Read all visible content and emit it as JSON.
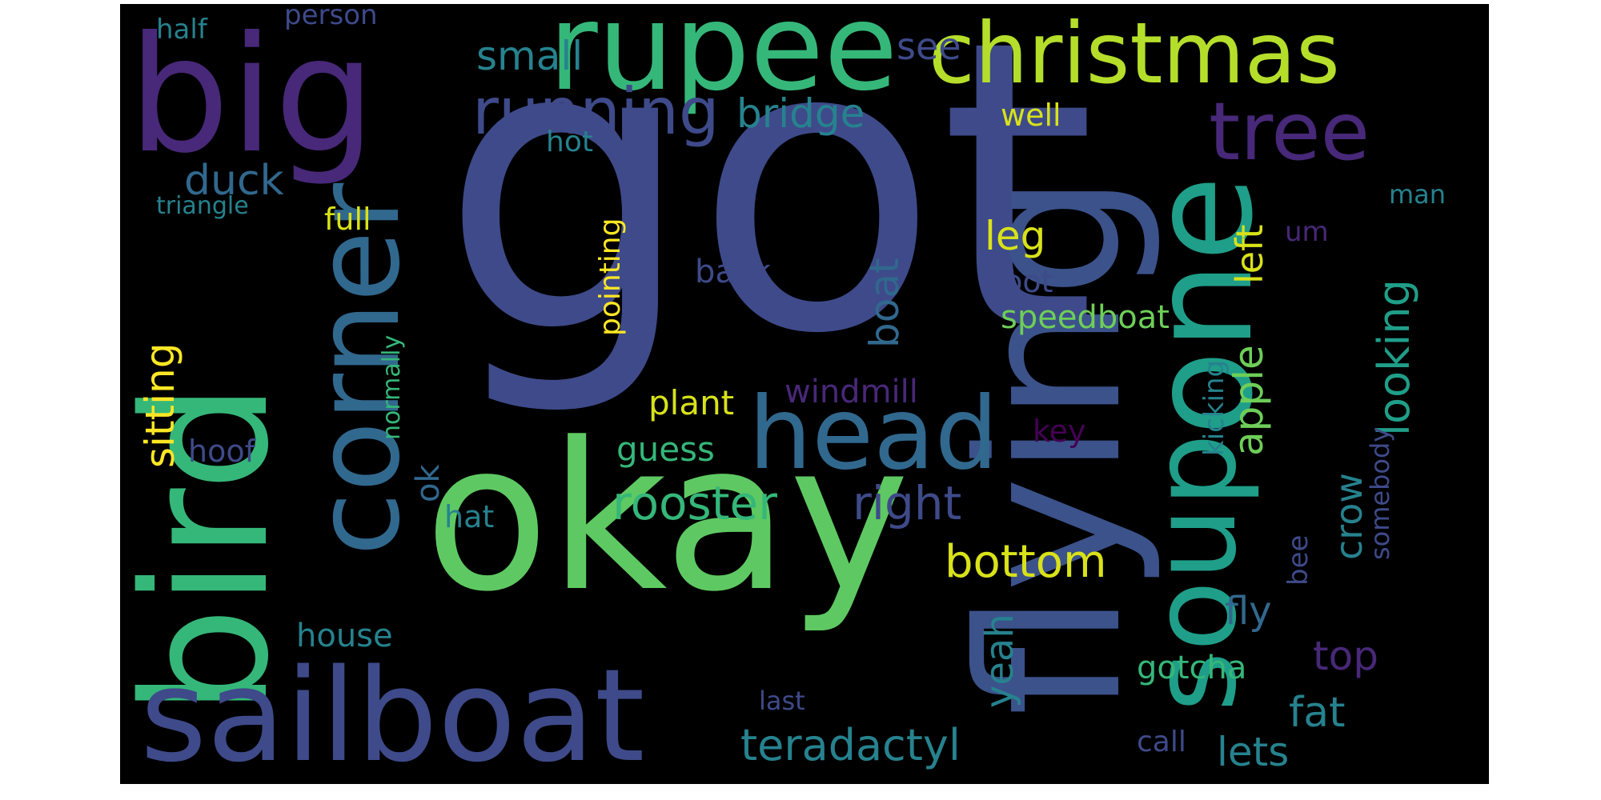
{
  "palette": {
    "background": "#000000",
    "deep_purple": "#440154",
    "purple": "#482878",
    "indigo": "#3e4a89",
    "blue": "#31688e",
    "teal": "#26828e",
    "green_teal": "#1f9e89",
    "sea_green": "#35b779",
    "green": "#6ece58",
    "lime": "#b5de2b",
    "yellow": "#fde725"
  },
  "words": [
    {
      "text": "got",
      "weight": 1.0,
      "color": "#3e4a89",
      "orientation": "horizontal"
    },
    {
      "text": "okay",
      "weight": 0.6,
      "color": "#5ec962",
      "orientation": "horizontal"
    },
    {
      "text": "flying",
      "weight": 0.55,
      "color": "#3b528b",
      "orientation": "vertical"
    },
    {
      "text": "bird",
      "weight": 0.52,
      "color": "#35b779",
      "orientation": "vertical"
    },
    {
      "text": "big",
      "weight": 0.46,
      "color": "#482878",
      "orientation": "horizontal"
    },
    {
      "text": "one",
      "weight": 0.42,
      "color": "#1f9e89",
      "orientation": "vertical"
    },
    {
      "text": "sailboat",
      "weight": 0.36,
      "color": "#3e4a89",
      "orientation": "horizontal"
    },
    {
      "text": "corner",
      "weight": 0.35,
      "color": "#31688e",
      "orientation": "vertical"
    },
    {
      "text": "rupee",
      "weight": 0.34,
      "color": "#35b779",
      "orientation": "horizontal"
    },
    {
      "text": "soup",
      "weight": 0.33,
      "color": "#1f9e89",
      "orientation": "vertical"
    },
    {
      "text": "head",
      "weight": 0.3,
      "color": "#31688e",
      "orientation": "horizontal"
    },
    {
      "text": "christmas",
      "weight": 0.27,
      "color": "#b5de2b",
      "orientation": "horizontal"
    },
    {
      "text": "tree",
      "weight": 0.25,
      "color": "#482878",
      "orientation": "horizontal"
    },
    {
      "text": "running",
      "weight": 0.21,
      "color": "#3e4a89",
      "orientation": "horizontal"
    },
    {
      "text": "rooster",
      "weight": 0.15,
      "color": "#35b779",
      "orientation": "horizontal"
    },
    {
      "text": "right",
      "weight": 0.14,
      "color": "#3e4a89",
      "orientation": "horizontal"
    },
    {
      "text": "bottom",
      "weight": 0.14,
      "color": "#d8e219",
      "orientation": "horizontal"
    },
    {
      "text": "teradactyl",
      "weight": 0.14,
      "color": "#26828e",
      "orientation": "horizontal"
    },
    {
      "text": "looking",
      "weight": 0.13,
      "color": "#1f9e89",
      "orientation": "vertical"
    },
    {
      "text": "sitting",
      "weight": 0.13,
      "color": "#fde725",
      "orientation": "vertical"
    },
    {
      "text": "bridge",
      "weight": 0.12,
      "color": "#26828e",
      "orientation": "horizontal"
    },
    {
      "text": "small",
      "weight": 0.12,
      "color": "#26828e",
      "orientation": "horizontal"
    },
    {
      "text": "fat",
      "weight": 0.12,
      "color": "#26828e",
      "orientation": "horizontal"
    },
    {
      "text": "top",
      "weight": 0.12,
      "color": "#482878",
      "orientation": "horizontal"
    },
    {
      "text": "lets",
      "weight": 0.12,
      "color": "#26828e",
      "orientation": "horizontal"
    },
    {
      "text": "duck",
      "weight": 0.12,
      "color": "#31688e",
      "orientation": "horizontal"
    },
    {
      "text": "apple",
      "weight": 0.12,
      "color": "#6ece58",
      "orientation": "vertical"
    },
    {
      "text": "boat",
      "weight": 0.12,
      "color": "#31688e",
      "orientation": "vertical"
    },
    {
      "text": "yeah",
      "weight": 0.12,
      "color": "#26828e",
      "orientation": "vertical"
    },
    {
      "text": "crow",
      "weight": 0.11,
      "color": "#26828e",
      "orientation": "vertical"
    },
    {
      "text": "left",
      "weight": 0.11,
      "color": "#d8e219",
      "orientation": "vertical"
    },
    {
      "text": "leg",
      "weight": 0.11,
      "color": "#d8e219",
      "orientation": "horizontal"
    },
    {
      "text": "fly",
      "weight": 0.11,
      "color": "#31688e",
      "orientation": "horizontal"
    },
    {
      "text": "see",
      "weight": 0.1,
      "color": "#3e4a89",
      "orientation": "horizontal"
    },
    {
      "text": "plant",
      "weight": 0.1,
      "color": "#d8e219",
      "orientation": "horizontal"
    },
    {
      "text": "guess",
      "weight": 0.1,
      "color": "#35b779",
      "orientation": "horizontal"
    },
    {
      "text": "speedboat",
      "weight": 0.1,
      "color": "#6ece58",
      "orientation": "horizontal"
    },
    {
      "text": "windmill",
      "weight": 0.1,
      "color": "#482878",
      "orientation": "horizontal"
    },
    {
      "text": "gotcha",
      "weight": 0.1,
      "color": "#35b779",
      "orientation": "horizontal"
    },
    {
      "text": "house",
      "weight": 0.1,
      "color": "#26828e",
      "orientation": "horizontal"
    },
    {
      "text": "back",
      "weight": 0.1,
      "color": "#3e4a89",
      "orientation": "horizontal"
    },
    {
      "text": "hoof",
      "weight": 0.09,
      "color": "#3e4a89",
      "orientation": "horizontal"
    },
    {
      "text": "hat",
      "weight": 0.09,
      "color": "#26828e",
      "orientation": "horizontal"
    },
    {
      "text": "full",
      "weight": 0.09,
      "color": "#d8e219",
      "orientation": "horizontal"
    },
    {
      "text": "boot",
      "weight": 0.09,
      "color": "#3e4a89",
      "orientation": "horizontal"
    },
    {
      "text": "well",
      "weight": 0.09,
      "color": "#d8e219",
      "orientation": "horizontal"
    },
    {
      "text": "ok",
      "weight": 0.09,
      "color": "#31688e",
      "orientation": "vertical"
    },
    {
      "text": "hot",
      "weight": 0.09,
      "color": "#26828e",
      "orientation": "horizontal"
    },
    {
      "text": "key",
      "weight": 0.09,
      "color": "#440154",
      "orientation": "horizontal"
    },
    {
      "text": "call",
      "weight": 0.09,
      "color": "#3e4a89",
      "orientation": "horizontal"
    },
    {
      "text": "pointing",
      "weight": 0.09,
      "color": "#fde725",
      "orientation": "vertical"
    },
    {
      "text": "kicking",
      "weight": 0.09,
      "color": "#26828e",
      "orientation": "vertical"
    },
    {
      "text": "half",
      "weight": 0.08,
      "color": "#26828e",
      "orientation": "horizontal"
    },
    {
      "text": "person",
      "weight": 0.08,
      "color": "#3e4a89",
      "orientation": "horizontal"
    },
    {
      "text": "triangle",
      "weight": 0.08,
      "color": "#26828e",
      "orientation": "horizontal"
    },
    {
      "text": "um",
      "weight": 0.08,
      "color": "#482878",
      "orientation": "horizontal"
    },
    {
      "text": "man",
      "weight": 0.08,
      "color": "#26828e",
      "orientation": "horizontal"
    },
    {
      "text": "last",
      "weight": 0.08,
      "color": "#3e4a89",
      "orientation": "horizontal"
    },
    {
      "text": "bee",
      "weight": 0.08,
      "color": "#3e4a89",
      "orientation": "vertical"
    },
    {
      "text": "somebody",
      "weight": 0.08,
      "color": "#3e4a89",
      "orientation": "vertical"
    },
    {
      "text": "normally",
      "weight": 0.07,
      "color": "#35b779",
      "orientation": "vertical"
    }
  ]
}
